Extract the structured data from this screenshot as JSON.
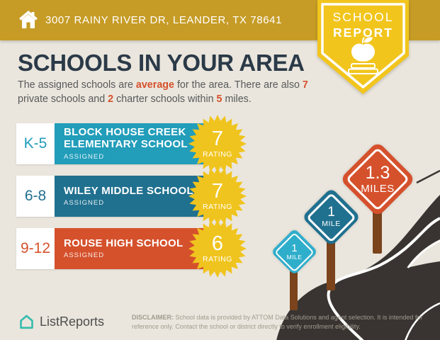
{
  "header": {
    "address": "3007 RAINY RIVER DR, LEANDER, TX 78641"
  },
  "badge": {
    "line1": "SCHOOL",
    "line2": "REPORT"
  },
  "main": {
    "title": "SCHOOLS IN YOUR AREA",
    "intro": {
      "part1": "The assigned schools are ",
      "highlight1": "average",
      "part2": " for the area. There are also ",
      "highlight2": "7",
      "part3": " private schools and ",
      "highlight3": "2",
      "part4": " charter schools within ",
      "highlight4": "5",
      "part5": " miles."
    }
  },
  "schools": [
    {
      "grades": "K-5",
      "name": "BLOCK HOUSE CREEK ELEMENTARY SCHOOL",
      "status": "ASSIGNED",
      "rating": "7",
      "rating_label": "RATING",
      "color": "#229DBA"
    },
    {
      "grades": "6-8",
      "name": "WILEY MIDDLE SCHOOL",
      "status": "ASSIGNED",
      "rating": "7",
      "rating_label": "RATING",
      "color": "#20708F"
    },
    {
      "grades": "9-12",
      "name": "ROUSE HIGH SCHOOL",
      "status": "ASSIGNED",
      "rating": "6",
      "rating_label": "RATING",
      "color": "#D5512C"
    }
  ],
  "signs": [
    {
      "value": "1",
      "unit": "MILE",
      "color": "#2FAECB"
    },
    {
      "value": "1",
      "unit": "MILE",
      "color": "#20708F"
    },
    {
      "value": "1.3",
      "unit": "MILES",
      "color": "#D5512C"
    }
  ],
  "footer": {
    "brand": "ListReports",
    "disclaimer_label": "DISCLAIMER:",
    "disclaimer_text": " School data is provided by ATTOM Data Solutions and agent selection. It is intended for reference only. Contact the school or district directly to verify enrollment eligibility."
  },
  "colors": {
    "header_gold": "#C69C26",
    "badge_yellow": "#F2C51D",
    "star_yellow": "#F0C41E",
    "road": "#393431",
    "post_brown": "#7B441D",
    "brand_teal": "#35BCAD"
  }
}
